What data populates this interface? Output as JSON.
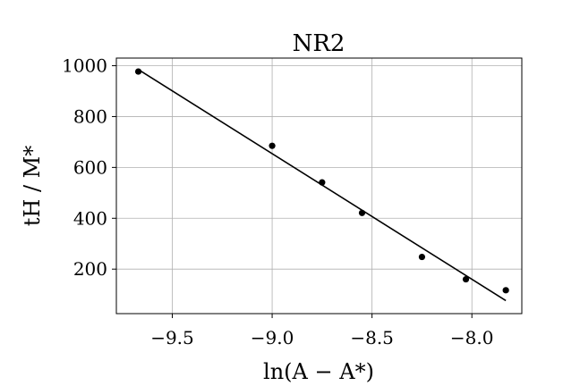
{
  "chart_data": {
    "type": "scatter",
    "title": "NR2",
    "xlabel": "ln(A − A*)",
    "ylabel": "tH / M*",
    "xlim": [
      -9.78,
      -7.75
    ],
    "ylim": [
      25,
      1030
    ],
    "grid": true,
    "x_ticks": [
      -9.5,
      -9.0,
      -8.5,
      -8.0
    ],
    "x_tick_labels": [
      "−9.5",
      "−9.0",
      "−8.5",
      "−8.0"
    ],
    "y_ticks": [
      200,
      400,
      600,
      800,
      1000
    ],
    "y_tick_labels": [
      "200",
      "400",
      "600",
      "800",
      "1000"
    ],
    "series": [
      {
        "kind": "points",
        "color": "#000000",
        "x": [
          -9.67,
          -9.0,
          -8.75,
          -8.55,
          -8.25,
          -8.03,
          -7.83
        ],
        "y": [
          977,
          685,
          541,
          421,
          248,
          160,
          117
        ]
      },
      {
        "kind": "fit-line",
        "color": "#000000",
        "x": [
          -9.67,
          -7.83
        ],
        "y": [
          985,
          76
        ]
      }
    ]
  }
}
